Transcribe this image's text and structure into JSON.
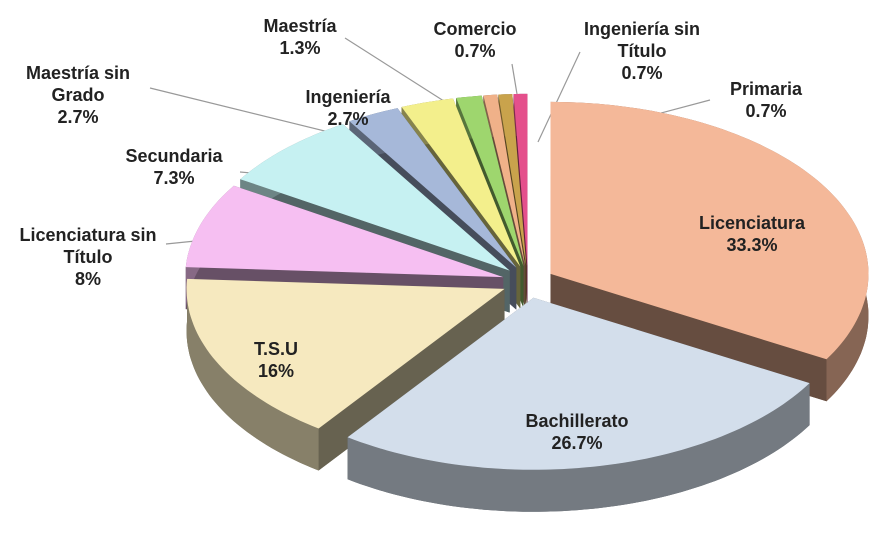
{
  "chart_data": {
    "type": "pie",
    "categories": [
      "Licenciatura",
      "Bachillerato",
      "T.S.U",
      "Licenciatura sin Título",
      "Secundaria",
      "Maestría sin Grado",
      "Ingeniería",
      "Maestría",
      "Comercio",
      "Ingeniería sin Título",
      "Primaria"
    ],
    "values": [
      33.3,
      26.7,
      16,
      8,
      7.3,
      2.7,
      2.7,
      1.3,
      0.7,
      0.7,
      0.7
    ],
    "value_labels": [
      "33.3%",
      "26.7%",
      "16%",
      "8%",
      "7.3%",
      "2.7%",
      "2.7%",
      "1.3%",
      "0.7%",
      "0.7%",
      "0.7%"
    ],
    "colors": [
      "#f4b899",
      "#d3deeb",
      "#f6e9bf",
      "#f6bff2",
      "#c6f1f2",
      "#a6b8d9",
      "#f3ef8c",
      "#9ed66e",
      "#f0b189",
      "#c9a34c",
      "#e4508c"
    ]
  }
}
